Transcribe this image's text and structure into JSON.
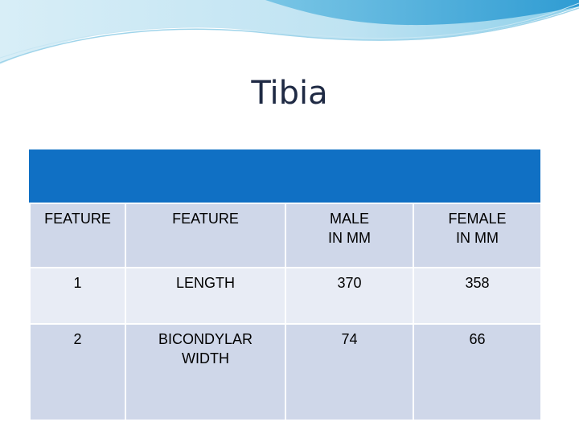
{
  "slide": {
    "title": "Tibia"
  },
  "table": {
    "header": [
      "FEATURE",
      "FEATURE",
      "MALE\nIN MM",
      "FEMALE\nIN MM"
    ],
    "rows": [
      [
        "1",
        "LENGTH",
        "370",
        "358"
      ],
      [
        "2",
        "BICONDYLAR\nWIDTH",
        "74",
        "66"
      ]
    ]
  },
  "colors": {
    "banner": "#1070c4",
    "row_dark": "#cfd7e9",
    "row_light": "#e8ecf5",
    "wave_light": "#bfe3f2",
    "wave_dark": "#3aa4d6"
  }
}
